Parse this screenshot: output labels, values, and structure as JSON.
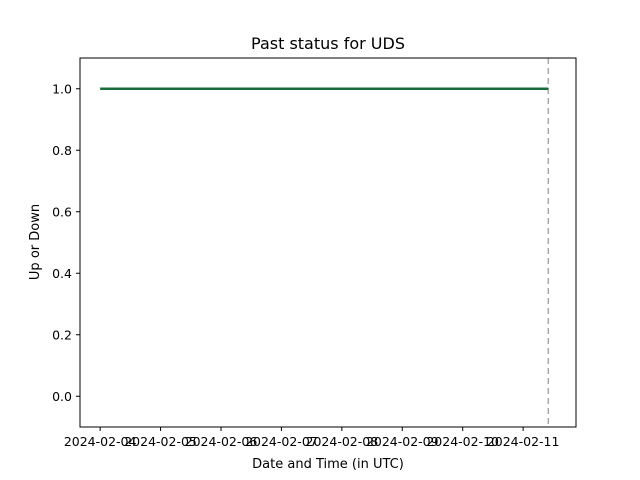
{
  "chart_data": {
    "type": "line",
    "title": "Past status for UDS",
    "xlabel": "Date and Time (in UTC)",
    "ylabel": "Up or Down",
    "x_ticks": [
      "2024-02-04",
      "2024-02-05",
      "2024-02-06",
      "2024-02-07",
      "2024-02-08",
      "2024-02-09",
      "2024-02-10",
      "2024-02-11"
    ],
    "y_ticks": [
      "0.0",
      "0.2",
      "0.4",
      "0.6",
      "0.8",
      "1.0"
    ],
    "xlim": [
      "2024-02-03T16:00",
      "2024-02-11T21:00"
    ],
    "ylim": [
      -0.1,
      1.1
    ],
    "series": [
      {
        "color": "#1a6b3c",
        "points": [
          {
            "x": "2024-02-04T00:00",
            "y": 1
          },
          {
            "x": "2024-02-11T10:00",
            "y": 1
          }
        ]
      }
    ],
    "reference_line": {
      "x": "2024-02-11T10:00",
      "color": "#aaaaaa",
      "style": "dashed"
    },
    "grid": false
  }
}
